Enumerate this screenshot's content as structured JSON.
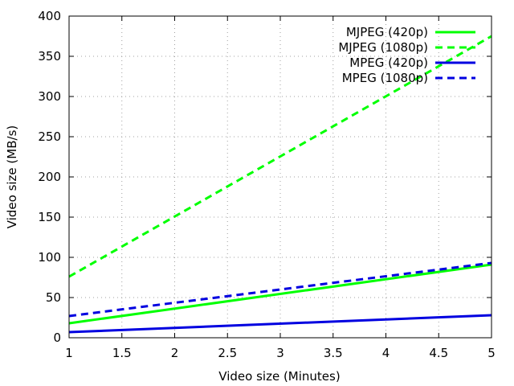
{
  "chart_data": {
    "type": "line",
    "title": "",
    "xlabel": "Video size (Minutes)",
    "ylabel": "Video size (MB/s)",
    "xlim": [
      1,
      5
    ],
    "ylim": [
      0,
      400
    ],
    "x_ticks": [
      "1",
      "1.5",
      "2",
      "2.5",
      "3",
      "3.5",
      "4",
      "4.5",
      "5"
    ],
    "y_ticks": [
      "0",
      "50",
      "100",
      "150",
      "200",
      "250",
      "300",
      "350",
      "400"
    ],
    "grid": true,
    "legend_position": "top-right",
    "series": [
      {
        "name": "MJPEG (420p)",
        "color": "#00ff00",
        "style": "solid",
        "x": [
          1,
          5
        ],
        "y": [
          18,
          91
        ]
      },
      {
        "name": "MJPEG (1080p)",
        "color": "#00ff00",
        "style": "dashed",
        "x": [
          1,
          5
        ],
        "y": [
          76,
          375
        ]
      },
      {
        "name": "MPEG (420p)",
        "color": "#0000e0",
        "style": "solid",
        "x": [
          1,
          5
        ],
        "y": [
          7,
          28
        ]
      },
      {
        "name": "MPEG (1080p)",
        "color": "#0000e0",
        "style": "dashed",
        "x": [
          1,
          5
        ],
        "y": [
          27,
          93
        ]
      }
    ]
  }
}
